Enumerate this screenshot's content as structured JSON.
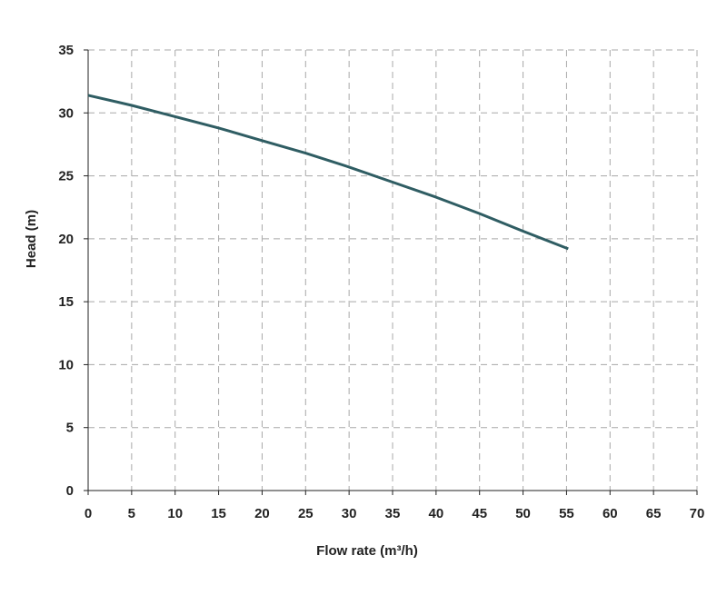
{
  "chart_data": {
    "type": "line",
    "title": "",
    "xlabel": "Flow rate (m³/h)",
    "ylabel": "Head (m)",
    "xlim": [
      0,
      70
    ],
    "ylim": [
      0,
      35
    ],
    "xticks": [
      0,
      5,
      10,
      15,
      20,
      25,
      30,
      35,
      40,
      45,
      50,
      55,
      60,
      65,
      70
    ],
    "yticks": [
      0,
      5,
      10,
      15,
      20,
      25,
      30,
      35
    ],
    "grid": true,
    "legend": "none",
    "series": [
      {
        "color": "#2f5d63",
        "x": [
          0,
          5,
          10,
          15,
          20,
          25,
          30,
          35,
          40,
          45,
          50,
          55.2
        ],
        "y": [
          31.4,
          30.6,
          29.7,
          28.8,
          27.8,
          26.8,
          25.7,
          24.5,
          23.3,
          22.0,
          20.6,
          19.2
        ]
      }
    ]
  }
}
